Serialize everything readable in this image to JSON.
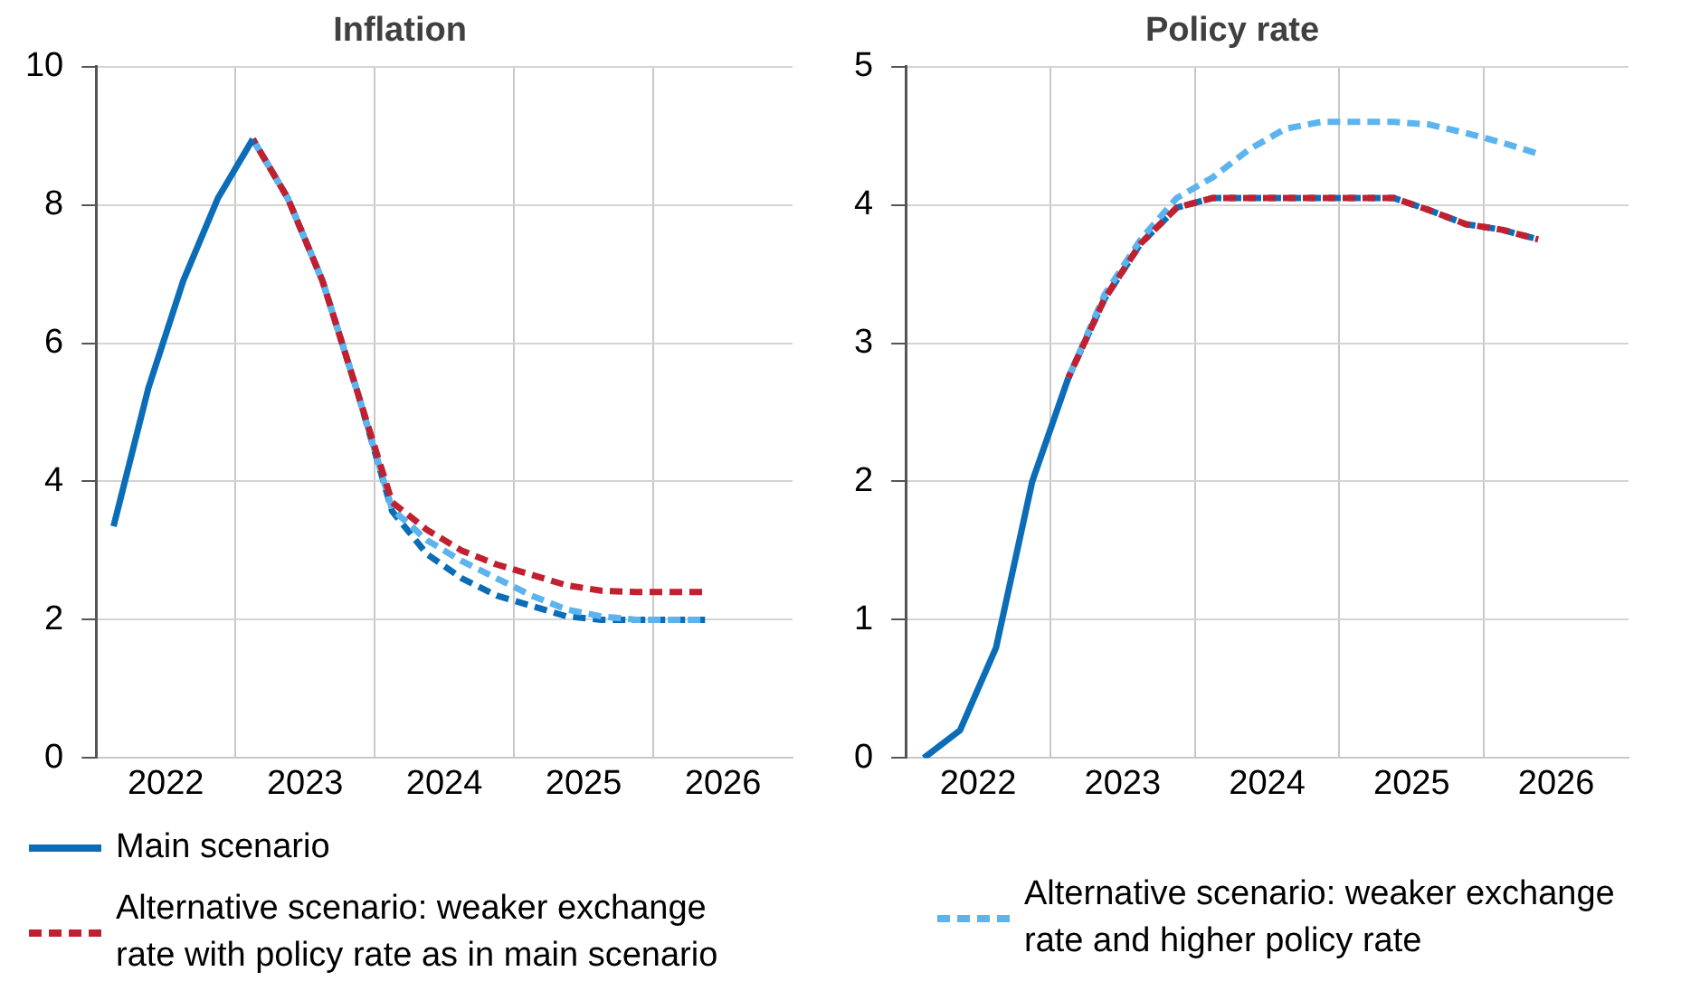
{
  "chart_data": [
    {
      "type": "line",
      "title": "Inflation",
      "x": [
        2022.125,
        2022.375,
        2022.625,
        2022.875,
        2023.125,
        2023.375,
        2023.625,
        2023.875,
        2024.125,
        2024.375,
        2024.625,
        2024.875,
        2025.125,
        2025.375,
        2025.625,
        2025.875,
        2026.125,
        2026.375
      ],
      "xlim": [
        2022,
        2027
      ],
      "xticks": [
        {
          "value": 2022.5,
          "label": "2022"
        },
        {
          "value": 2023,
          "label": null
        },
        {
          "value": 2023.5,
          "label": "2023"
        },
        {
          "value": 2024,
          "label": null
        },
        {
          "value": 2024.5,
          "label": "2024"
        },
        {
          "value": 2025,
          "label": null
        },
        {
          "value": 2025.5,
          "label": "2025"
        },
        {
          "value": 2026,
          "label": null
        },
        {
          "value": 2026.5,
          "label": "2026"
        }
      ],
      "ylim": [
        0,
        10
      ],
      "yticks": [
        0,
        2,
        4,
        6,
        8,
        10
      ],
      "grid": true,
      "legend": "bottom",
      "marker": "none",
      "series": [
        {
          "name": "Main scenario",
          "color": "#0b6db7",
          "line_style": "solid",
          "values": [
            3.35,
            5.35,
            6.9,
            8.1,
            8.95,
            null,
            null,
            null,
            null,
            null,
            null,
            null,
            null,
            null,
            null,
            null,
            null,
            null
          ]
        },
        {
          "name": "Alternative scenario: weaker exchange rate with policy rate as in main scenario",
          "color": "#c0202f",
          "line_style": "dashed",
          "values": [
            null,
            null,
            null,
            null,
            8.95,
            8.1,
            6.9,
            5.3,
            3.7,
            3.3,
            3.0,
            2.8,
            2.65,
            2.5,
            2.42,
            2.4,
            2.4,
            2.4
          ]
        },
        {
          "color": "#5cb4ee",
          "line_style": "dashed",
          "values": [
            null,
            null,
            null,
            null,
            8.95,
            8.1,
            6.9,
            5.3,
            3.6,
            3.15,
            2.85,
            2.6,
            2.35,
            2.15,
            2.05,
            2.0,
            2.0,
            2.0
          ]
        },
        {
          "color": "#0b6db7",
          "line_style": "dashed",
          "values": [
            null,
            null,
            null,
            null,
            8.95,
            8.1,
            6.9,
            5.3,
            3.57,
            2.95,
            2.6,
            2.35,
            2.2,
            2.05,
            2.0,
            2.0,
            2.0,
            2.0
          ]
        }
      ]
    },
    {
      "type": "line",
      "title": "Policy rate",
      "x": [
        2022.125,
        2022.375,
        2022.625,
        2022.875,
        2023.125,
        2023.375,
        2023.625,
        2023.875,
        2024.125,
        2024.375,
        2024.625,
        2024.875,
        2025.125,
        2025.375,
        2025.625,
        2025.875,
        2026.125,
        2026.375
      ],
      "xlim": [
        2022,
        2027
      ],
      "xticks": [
        {
          "value": 2022.5,
          "label": "2022"
        },
        {
          "value": 2023,
          "label": null
        },
        {
          "value": 2023.5,
          "label": "2023"
        },
        {
          "value": 2024,
          "label": null
        },
        {
          "value": 2024.5,
          "label": "2024"
        },
        {
          "value": 2025,
          "label": null
        },
        {
          "value": 2025.5,
          "label": "2025"
        },
        {
          "value": 2026,
          "label": null
        },
        {
          "value": 2026.5,
          "label": "2026"
        }
      ],
      "ylim": [
        0,
        5
      ],
      "yticks": [
        0,
        1,
        2,
        3,
        4,
        5
      ],
      "grid": true,
      "legend": "bottom",
      "marker": "none",
      "series": [
        {
          "color": "#0b6db7",
          "line_style": "solid",
          "values": [
            0,
            0.2,
            0.8,
            2.0,
            2.75,
            null,
            null,
            null,
            null,
            null,
            null,
            null,
            null,
            null,
            null,
            null,
            null,
            null
          ]
        },
        {
          "color": "#c0202f",
          "line_style": "dashed",
          "values": [
            null,
            null,
            null,
            null,
            2.75,
            3.32,
            3.72,
            3.98,
            4.05,
            4.05,
            4.05,
            4.05,
            4.05,
            4.05,
            3.96,
            3.86,
            3.82,
            3.75
          ]
        },
        {
          "name": "Alternative scenario: weaker exchange rate and higher policy rate",
          "color": "#5cb4ee",
          "line_style": "dashed",
          "values": [
            null,
            null,
            null,
            null,
            2.75,
            3.35,
            3.75,
            4.05,
            4.2,
            4.4,
            4.55,
            4.6,
            4.6,
            4.6,
            4.58,
            4.52,
            4.45,
            4.37
          ]
        },
        {
          "color": "#0b6db7",
          "line_style": "dashed",
          "values": [
            null,
            null,
            null,
            null,
            2.75,
            3.32,
            3.72,
            3.98,
            4.05,
            4.05,
            4.05,
            4.05,
            4.05,
            4.05,
            3.96,
            3.86,
            3.82,
            3.75
          ]
        }
      ]
    }
  ]
}
